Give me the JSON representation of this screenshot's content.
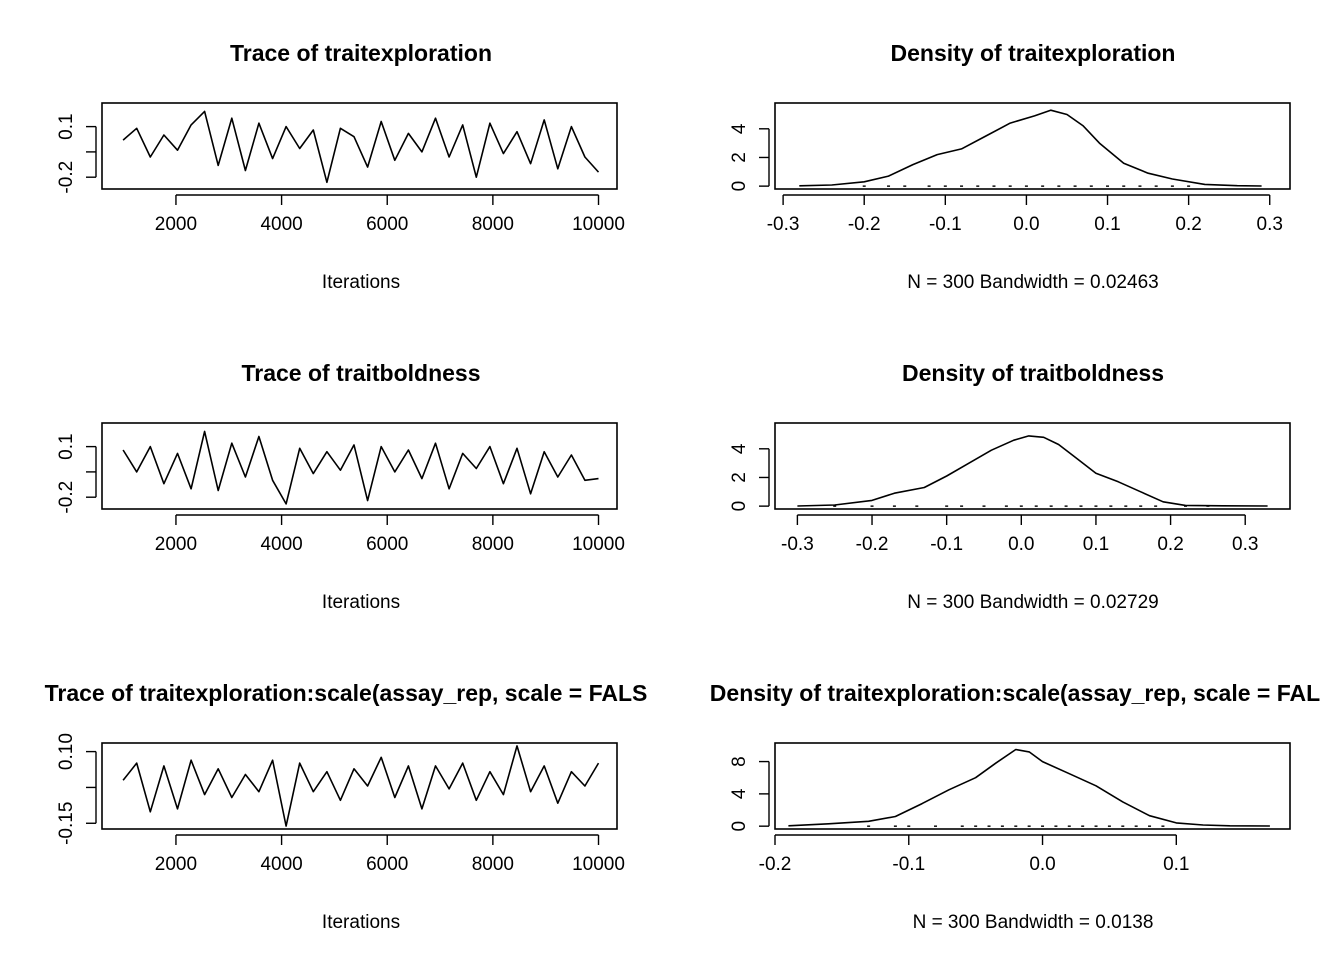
{
  "figure": {
    "background": "#ffffff",
    "line_color": "#000000"
  },
  "chart_data": [
    {
      "type": "line",
      "title": "Trace of traitexploration",
      "xlabel": "Iterations",
      "ylabel": "",
      "xlim": [
        600,
        10350
      ],
      "ylim": [
        -0.27,
        0.24
      ],
      "xticks": [
        2000,
        4000,
        6000,
        8000,
        10000
      ],
      "xtick_labels": [
        "2000",
        "4000",
        "6000",
        "8000",
        "10000"
      ],
      "yticks": [
        -0.2,
        -0.05,
        0.1
      ],
      "ytick_labels": [
        "-0.2",
        "",
        "0.1"
      ],
      "series": [
        {
          "x": [
            1000,
            1257,
            1514,
            1771,
            2029,
            2286,
            2543,
            2800,
            3057,
            3314,
            3571,
            3829,
            4086,
            4343,
            4600,
            4857,
            5114,
            5371,
            5629,
            5886,
            6143,
            6400,
            6657,
            6914,
            7171,
            7429,
            7686,
            7943,
            8200,
            8457,
            8714,
            8971,
            9229,
            9486,
            9743,
            10000
          ],
          "values": [
            0.02,
            0.09,
            -0.08,
            0.05,
            -0.04,
            0.11,
            0.19,
            -0.13,
            0.15,
            -0.16,
            0.12,
            -0.09,
            0.1,
            -0.03,
            0.08,
            -0.23,
            0.09,
            0.04,
            -0.14,
            0.13,
            -0.1,
            0.06,
            -0.05,
            0.15,
            -0.08,
            0.11,
            -0.2,
            0.12,
            -0.06,
            0.07,
            -0.12,
            0.14,
            -0.15,
            0.1,
            -0.08,
            -0.17
          ]
        }
      ]
    },
    {
      "type": "line",
      "title": "Density of traitexploration",
      "xlabel": "N = 300   Bandwidth = 0.02463",
      "ylabel": "",
      "xlim": [
        -0.31,
        0.325
      ],
      "ylim": [
        -0.2,
        5.8
      ],
      "xticks": [
        -0.3,
        -0.2,
        -0.1,
        0.0,
        0.1,
        0.2,
        0.3
      ],
      "xtick_labels": [
        "-0.3",
        "-0.2",
        "-0.1",
        "0.0",
        "0.1",
        "0.2",
        "0.3"
      ],
      "yticks": [
        0,
        2,
        4
      ],
      "ytick_labels": [
        "0",
        "2",
        "4"
      ],
      "series": [
        {
          "x": [
            -0.28,
            -0.24,
            -0.2,
            -0.17,
            -0.14,
            -0.11,
            -0.08,
            -0.05,
            -0.02,
            0.01,
            0.03,
            0.05,
            0.07,
            0.09,
            0.12,
            0.15,
            0.18,
            0.22,
            0.26,
            0.29
          ],
          "values": [
            0.02,
            0.08,
            0.3,
            0.7,
            1.5,
            2.2,
            2.6,
            3.5,
            4.4,
            4.9,
            5.3,
            5.0,
            4.2,
            3.0,
            1.6,
            0.9,
            0.5,
            0.12,
            0.03,
            0.01
          ]
        }
      ],
      "rug": [
        -0.2,
        -0.17,
        -0.15,
        -0.12,
        -0.1,
        -0.08,
        -0.06,
        -0.04,
        -0.02,
        0.0,
        0.02,
        0.04,
        0.06,
        0.08,
        0.1,
        0.12,
        0.14,
        0.16,
        0.18,
        0.2
      ]
    },
    {
      "type": "line",
      "title": "Trace of traitboldness",
      "xlabel": "Iterations",
      "ylabel": "",
      "xlim": [
        600,
        10350
      ],
      "ylim": [
        -0.27,
        0.24
      ],
      "xticks": [
        2000,
        4000,
        6000,
        8000,
        10000
      ],
      "xtick_labels": [
        "2000",
        "4000",
        "6000",
        "8000",
        "10000"
      ],
      "yticks": [
        -0.2,
        -0.05,
        0.1
      ],
      "ytick_labels": [
        "-0.2",
        "",
        "0.1"
      ],
      "series": [
        {
          "x": [
            1000,
            1257,
            1514,
            1771,
            2029,
            2286,
            2543,
            2800,
            3057,
            3314,
            3571,
            3829,
            4086,
            4343,
            4600,
            4857,
            5114,
            5371,
            5629,
            5886,
            6143,
            6400,
            6657,
            6914,
            7171,
            7429,
            7686,
            7943,
            8200,
            8457,
            8714,
            8971,
            9229,
            9486,
            9743,
            10000
          ],
          "values": [
            0.08,
            -0.05,
            0.1,
            -0.12,
            0.06,
            -0.15,
            0.19,
            -0.16,
            0.12,
            -0.08,
            0.16,
            -0.1,
            -0.24,
            0.09,
            -0.06,
            0.07,
            -0.04,
            0.11,
            -0.22,
            0.1,
            -0.05,
            0.08,
            -0.09,
            0.12,
            -0.15,
            0.06,
            -0.03,
            0.1,
            -0.12,
            0.09,
            -0.18,
            0.07,
            -0.08,
            0.05,
            -0.1,
            -0.09
          ]
        }
      ]
    },
    {
      "type": "line",
      "title": "Density of traitboldness",
      "xlabel": "N = 300   Bandwidth = 0.02729",
      "ylabel": "",
      "xlim": [
        -0.33,
        0.36
      ],
      "ylim": [
        -0.2,
        5.8
      ],
      "xticks": [
        -0.3,
        -0.2,
        -0.1,
        0.0,
        0.1,
        0.2,
        0.3
      ],
      "xtick_labels": [
        "-0.3",
        "-0.2",
        "-0.1",
        "0.0",
        "0.1",
        "0.2",
        "0.3"
      ],
      "yticks": [
        0,
        2,
        4
      ],
      "ytick_labels": [
        "0",
        "2",
        "4"
      ],
      "series": [
        {
          "x": [
            -0.3,
            -0.25,
            -0.2,
            -0.17,
            -0.13,
            -0.1,
            -0.07,
            -0.04,
            -0.01,
            0.01,
            0.03,
            0.05,
            0.07,
            0.1,
            0.13,
            0.16,
            0.19,
            0.22,
            0.27,
            0.33
          ],
          "values": [
            0.01,
            0.08,
            0.4,
            0.9,
            1.3,
            2.1,
            3.0,
            3.9,
            4.6,
            4.9,
            4.8,
            4.3,
            3.5,
            2.3,
            1.7,
            1.0,
            0.3,
            0.05,
            0.02,
            0.01
          ]
        }
      ],
      "rug": [
        -0.25,
        -0.2,
        -0.17,
        -0.14,
        -0.1,
        -0.08,
        -0.05,
        -0.02,
        0.0,
        0.02,
        0.04,
        0.06,
        0.08,
        0.1,
        0.12,
        0.14,
        0.16,
        0.18,
        0.22,
        0.25
      ]
    },
    {
      "type": "line",
      "title": "Trace of traitexploration:scale(assay_rep, scale = FALS",
      "xlabel": "Iterations",
      "ylabel": "",
      "xlim": [
        600,
        10350
      ],
      "ylim": [
        -0.17,
        0.13
      ],
      "xticks": [
        2000,
        4000,
        6000,
        8000,
        10000
      ],
      "xtick_labels": [
        "2000",
        "4000",
        "6000",
        "8000",
        "10000"
      ],
      "yticks": [
        -0.15,
        -0.025,
        0.1
      ],
      "ytick_labels": [
        "-0.15",
        "",
        "0.10"
      ],
      "series": [
        {
          "x": [
            1000,
            1257,
            1514,
            1771,
            2029,
            2286,
            2543,
            2800,
            3057,
            3314,
            3571,
            3829,
            4086,
            4343,
            4600,
            4857,
            5114,
            5371,
            5629,
            5886,
            6143,
            6400,
            6657,
            6914,
            7171,
            7429,
            7686,
            7943,
            8200,
            8457,
            8714,
            8971,
            9229,
            9486,
            9743,
            10000
          ],
          "values": [
            0.0,
            0.06,
            -0.11,
            0.05,
            -0.1,
            0.07,
            -0.05,
            0.04,
            -0.06,
            0.02,
            -0.04,
            0.07,
            -0.16,
            0.06,
            -0.04,
            0.03,
            -0.07,
            0.04,
            -0.02,
            0.08,
            -0.06,
            0.05,
            -0.1,
            0.05,
            -0.03,
            0.06,
            -0.07,
            0.03,
            -0.05,
            0.12,
            -0.04,
            0.05,
            -0.08,
            0.03,
            -0.02,
            0.06
          ]
        }
      ]
    },
    {
      "type": "line",
      "title": "Density of traitexploration:scale(assay_rep, scale = FAL",
      "xlabel": "N = 300   Bandwidth = 0.0138",
      "ylabel": "",
      "xlim": [
        -0.2,
        0.185
      ],
      "ylim": [
        -0.35,
        10.3
      ],
      "xticks": [
        -0.2,
        -0.1,
        0.0,
        0.1
      ],
      "xtick_labels": [
        "-0.2",
        "-0.1",
        "0.0",
        "0.1"
      ],
      "yticks": [
        0,
        4,
        8
      ],
      "ytick_labels": [
        "0",
        "4",
        "8"
      ],
      "series": [
        {
          "x": [
            -0.19,
            -0.16,
            -0.13,
            -0.11,
            -0.09,
            -0.07,
            -0.05,
            -0.035,
            -0.02,
            -0.01,
            0.0,
            0.02,
            0.04,
            0.06,
            0.08,
            0.1,
            0.12,
            0.14,
            0.17
          ],
          "values": [
            0.05,
            0.3,
            0.6,
            1.2,
            2.8,
            4.5,
            6.0,
            7.8,
            9.5,
            9.2,
            8.0,
            6.5,
            5.0,
            3.0,
            1.3,
            0.4,
            0.15,
            0.05,
            0.02
          ]
        }
      ],
      "rug": [
        -0.13,
        -0.11,
        -0.1,
        -0.08,
        -0.06,
        -0.05,
        -0.04,
        -0.03,
        -0.02,
        -0.01,
        0.0,
        0.01,
        0.02,
        0.03,
        0.04,
        0.05,
        0.06,
        0.07,
        0.08,
        0.09
      ]
    }
  ]
}
